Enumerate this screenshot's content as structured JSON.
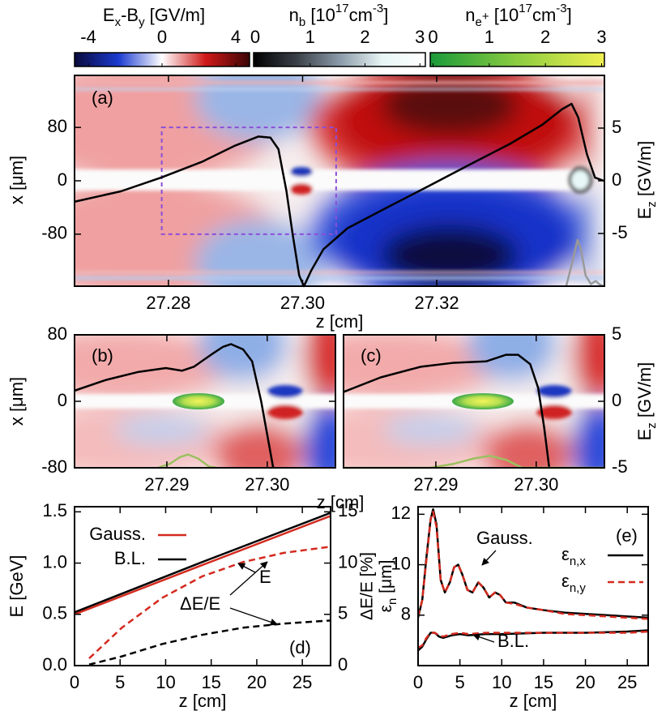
{
  "colorbars": [
    {
      "label": [
        "E",
        "x",
        "-B",
        "y",
        " [GV/m]"
      ],
      "lim": [
        -4.75,
        4.75
      ],
      "ticks": [
        -4,
        0,
        4
      ],
      "colors": [
        "#0a0a3c",
        "#1a3ad0",
        "#ffffff",
        "#d01818",
        "#3c0505"
      ]
    },
    {
      "label": [
        "n",
        "b",
        " [10",
        "17",
        "cm",
        "-3",
        "]"
      ],
      "lim": [
        -0.03,
        3.1
      ],
      "ticks": [
        0,
        1,
        2,
        3
      ],
      "colors": [
        "#000000",
        "#3a4048",
        "#8a9aa8",
        "#e8f6f6",
        "#ffffff"
      ]
    },
    {
      "label": [
        "n",
        "e",
        "+",
        " [10",
        "17",
        "cm",
        "-3",
        "]"
      ],
      "lim": [
        -0.05,
        3.05
      ],
      "ticks": [
        0,
        1,
        2,
        3
      ],
      "colors": [
        "#1a9a3a",
        "#8ccc40",
        "#f0f050"
      ]
    }
  ],
  "chart_data": [
    {
      "type": "line",
      "label": "(a)",
      "xlabel": "z [cm]",
      "ylabel": "x [μm]",
      "y2label": [
        "E",
        "z",
        " [GV/m]"
      ],
      "xlim": [
        27.266,
        27.345
      ],
      "xticks": [
        27.28,
        {
          "value": 27.3,
          "label": "27.30"
        },
        27.32
      ],
      "ylim": [
        -158,
        158
      ],
      "yticks": [
        -80,
        0,
        80
      ],
      "y2lim": [
        -10,
        10
      ],
      "y2ticks": [
        -5,
        0,
        5
      ],
      "zoom_box": {
        "z": [
          27.279,
          27.305
        ],
        "x": [
          -80,
          80
        ],
        "color": "#8a4fd8"
      },
      "series": [
        {
          "color": "#000000",
          "axis": "y2",
          "x": [
            27.2659,
            27.2729,
            27.2789,
            27.285,
            27.2898,
            27.2934,
            27.2952,
            27.2964,
            27.2976,
            27.2985,
            27.2995,
            27.3002,
            27.3013,
            27.3031,
            27.3067,
            27.3127,
            27.3188,
            27.3248,
            27.3309,
            27.3357,
            27.3387,
            27.3401,
            27.3411,
            27.3424,
            27.3436,
            27.3449
          ],
          "values": [
            -2.0,
            -1.0,
            0.3,
            1.8,
            3.3,
            4.2,
            4.1,
            3.0,
            -1.0,
            -5,
            -9,
            -10,
            -8.5,
            -6.5,
            -4.5,
            -2.5,
            -0.5,
            1.5,
            3.5,
            5.3,
            6.8,
            7.3,
            6.0,
            2.5,
            0.3,
            0.0
          ]
        },
        {
          "color": "#9a9a9a",
          "axis": "y2",
          "x": [
            27.3393,
            27.3401,
            27.341,
            27.3415,
            27.3422,
            27.343,
            27.3437,
            27.3442,
            27.3449
          ],
          "values": [
            -10,
            -8,
            -5.6,
            -6.5,
            -9,
            -9.8,
            -9.5,
            -9.8,
            -10
          ]
        }
      ]
    },
    {
      "type": "line",
      "label": "(b)",
      "xlabel": "z [cm]",
      "ylabel": "x [μm]",
      "xlim": [
        27.2808,
        27.3068
      ],
      "xticks": [
        27.29,
        {
          "value": 27.3,
          "label": "27.30"
        }
      ],
      "ylim": [
        -80,
        80
      ],
      "yticks": [
        -80,
        0,
        80
      ],
      "y2lim": [
        -5,
        5
      ],
      "series": [
        {
          "color": "#000000",
          "axis": "y2",
          "x": [
            27.2808,
            27.2839,
            27.2871,
            27.2899,
            27.2915,
            27.2927,
            27.2944,
            27.2956,
            27.2964,
            27.2976,
            27.2985,
            27.2994,
            27.3,
            27.3006
          ],
          "values": [
            0.8,
            1.6,
            2.2,
            2.5,
            2.3,
            2.6,
            3.5,
            4.1,
            4.3,
            3.9,
            3.0,
            0,
            -2.5,
            -5
          ]
        },
        {
          "color": "#9cc060",
          "axis": "y2",
          "x": [
            27.2891,
            27.2903,
            27.2913,
            27.2921,
            27.2931,
            27.2942,
            27.295
          ],
          "values": [
            -5,
            -4.7,
            -4.2,
            -4.0,
            -4.3,
            -4.9,
            -5
          ]
        }
      ]
    },
    {
      "type": "line",
      "label": "(c)",
      "y2label": [
        "E",
        "z",
        " [GV/m]"
      ],
      "xlim": [
        27.2808,
        27.3068
      ],
      "xticks": [
        27.29,
        {
          "value": 27.3,
          "label": "27.30"
        }
      ],
      "ylim": [
        -80,
        80
      ],
      "y2lim": [
        -5,
        5
      ],
      "y2ticks": [
        -5,
        0,
        5
      ],
      "series": [
        {
          "color": "#000000",
          "axis": "y2",
          "x": [
            27.2808,
            27.2845,
            27.2885,
            27.2918,
            27.295,
            27.297,
            27.2982,
            27.2994,
            27.3002,
            27.3008,
            27.3013
          ],
          "values": [
            0.7,
            1.8,
            2.6,
            2.9,
            3.0,
            3.5,
            3.5,
            2.8,
            1,
            -2,
            -5
          ]
        },
        {
          "color": "#9cc060",
          "axis": "y2",
          "x": [
            27.2808,
            27.2894,
            27.2918,
            27.2938,
            27.2954,
            27.297,
            27.2986,
            27.3068
          ],
          "values": [
            -5,
            -5,
            -4.7,
            -4.3,
            -4.1,
            -4.4,
            -5,
            -5
          ]
        }
      ]
    },
    {
      "type": "line",
      "label": "(d)",
      "xlabel": "z [cm]",
      "ylabel": "E [GeV]",
      "y2label": "ΔE/E [%]",
      "xlim": [
        0,
        28.1
      ],
      "xticks": [
        0,
        5,
        10,
        15,
        20,
        25
      ],
      "ylim": [
        0,
        1.55
      ],
      "yticks": [
        {
          "value": 0,
          "label": "0.0"
        },
        0.5,
        {
          "value": 1,
          "label": "1.0"
        },
        1.5
      ],
      "y2lim": [
        0,
        15.5
      ],
      "y2ticks": [
        0,
        5,
        10,
        15
      ],
      "legend": "upper left",
      "annotations": [
        "E",
        "ΔE/E"
      ],
      "series": [
        {
          "name": "Gauss.",
          "color": "#d42a1e",
          "x": [
            0,
            14,
            28.1
          ],
          "values": [
            0.5,
            0.98,
            1.46
          ]
        },
        {
          "name": "B.L.",
          "color": "#000000",
          "x": [
            0,
            14,
            28.1
          ],
          "values": [
            0.52,
            1.01,
            1.49
          ]
        },
        {
          "color": "#d42a1e",
          "dashed": true,
          "axis": "y2",
          "x": [
            1.6,
            5.2,
            9.6,
            14,
            18.5,
            23,
            28.1
          ],
          "values": [
            0.7,
            3.7,
            6.6,
            8.7,
            10.1,
            11.0,
            11.6
          ]
        },
        {
          "color": "#000000",
          "dashed": true,
          "axis": "y2",
          "x": [
            1.6,
            5.2,
            9.6,
            14,
            18.5,
            23,
            28.1
          ],
          "values": [
            0.1,
            0.9,
            2.1,
            3.0,
            3.7,
            4.1,
            4.4
          ]
        }
      ]
    },
    {
      "type": "line",
      "label": "(e)",
      "xlabel": "z [cm]",
      "ylabel": [
        "ε",
        "n",
        " [μm]"
      ],
      "xlim": [
        0,
        27.5
      ],
      "xticks": [
        0,
        5,
        10,
        15,
        20,
        25
      ],
      "ylim": [
        6,
        12.3
      ],
      "yticks": [
        8,
        10,
        12
      ],
      "legend": "upper right",
      "annotations": [
        "Gauss.",
        "B.L."
      ],
      "series": [
        {
          "name": [
            "ε",
            "n,x"
          ],
          "color": "#000000",
          "x": [
            0,
            0.5,
            1,
            1.5,
            1.8,
            2.2,
            2.7,
            3.2,
            3.8,
            4.3,
            4.8,
            5.3,
            5.9,
            6.5,
            7.2,
            7.8,
            8.5,
            9.2,
            9.8,
            10.5,
            11.5,
            13,
            15,
            17.5,
            20,
            22.5,
            25,
            27.5
          ],
          "values": [
            7.9,
            8.6,
            10.3,
            11.8,
            12.2,
            11.6,
            9.4,
            8.9,
            9.3,
            9.9,
            10.0,
            9.6,
            9.0,
            8.9,
            9.3,
            9.1,
            8.7,
            8.9,
            8.8,
            8.5,
            8.5,
            8.3,
            8.2,
            8.1,
            8.05,
            8.0,
            7.95,
            7.9
          ]
        },
        {
          "name": [
            "ε",
            "n,y"
          ],
          "color": "#d42a1e",
          "dashed": true,
          "x": [
            0,
            0.5,
            1,
            1.5,
            1.8,
            2.2,
            2.7,
            3.2,
            3.8,
            4.3,
            4.8,
            5.3,
            5.9,
            6.5,
            7.2,
            7.8,
            8.5,
            9.2,
            9.8,
            10.5,
            11.5,
            13,
            15,
            17.5,
            20,
            22.5,
            25,
            27.5
          ],
          "values": [
            7.95,
            8.6,
            10.2,
            11.8,
            12.1,
            11.5,
            9.4,
            8.9,
            9.3,
            9.9,
            10.0,
            9.6,
            9.0,
            8.9,
            9.3,
            9.1,
            8.7,
            8.9,
            8.8,
            8.5,
            8.45,
            8.3,
            8.2,
            8.05,
            8.0,
            7.95,
            7.9,
            7.85
          ]
        },
        {
          "color": "#000000",
          "x": [
            0,
            0.5,
            1,
            1.5,
            2,
            2.5,
            3,
            4,
            5,
            6,
            8,
            10,
            15,
            20,
            25,
            27.5
          ],
          "values": [
            6.6,
            6.75,
            7.05,
            7.3,
            7.3,
            7.15,
            7.1,
            7.2,
            7.25,
            7.2,
            7.25,
            7.25,
            7.3,
            7.3,
            7.35,
            7.4
          ]
        },
        {
          "color": "#d42a1e",
          "dashed": true,
          "x": [
            0,
            0.5,
            1,
            1.5,
            2,
            2.5,
            3,
            4,
            5,
            6,
            8,
            10,
            15,
            20,
            25,
            27.5
          ],
          "values": [
            6.7,
            6.8,
            7.1,
            7.3,
            7.3,
            7.2,
            7.15,
            7.25,
            7.3,
            7.25,
            7.3,
            7.3,
            7.3,
            7.3,
            7.3,
            7.35
          ]
        }
      ]
    }
  ]
}
